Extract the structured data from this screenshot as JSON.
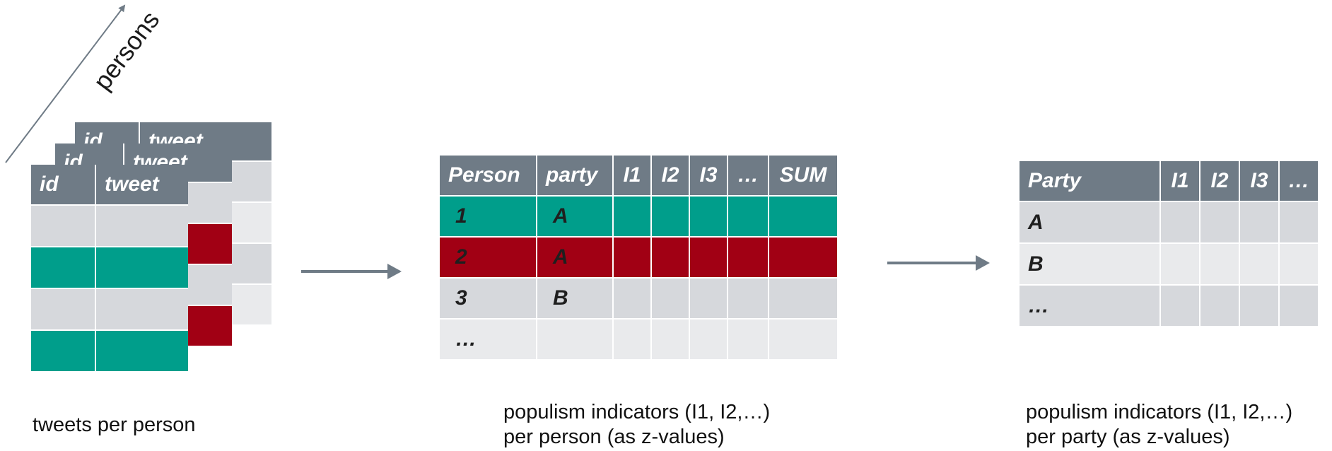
{
  "axis_label": "persons",
  "tweets_table": {
    "headers": [
      "id",
      "tweet"
    ],
    "row_colors": [
      "grey",
      "teal",
      "grey",
      "teal"
    ]
  },
  "person_table": {
    "headers": [
      "Person",
      "party",
      "I1",
      "I2",
      "I3",
      "…",
      "SUM"
    ],
    "rows": [
      {
        "person": "1",
        "party": "A"
      },
      {
        "person": "2",
        "party": "A"
      },
      {
        "person": "3",
        "party": "B"
      },
      {
        "person": "…",
        "party": ""
      }
    ]
  },
  "party_table": {
    "headers": [
      "Party",
      "I1",
      "I2",
      "I3",
      "…"
    ],
    "rows": [
      "A",
      "B",
      "…"
    ]
  },
  "captions": {
    "tweets": "tweets per person",
    "person_line1": "populism indicators (I1, I2,…)",
    "person_line2": "per person (as z-values)",
    "party_line1": "populism indicators (I1, I2,…)",
    "party_line2": "per party (as z-values)"
  },
  "colors": {
    "header": "#6f7b86",
    "grey": "#d6d8dc",
    "light_grey": "#e9eaec",
    "teal": "#009e8b",
    "red": "#a10014",
    "arrow": "#6f7b86"
  }
}
